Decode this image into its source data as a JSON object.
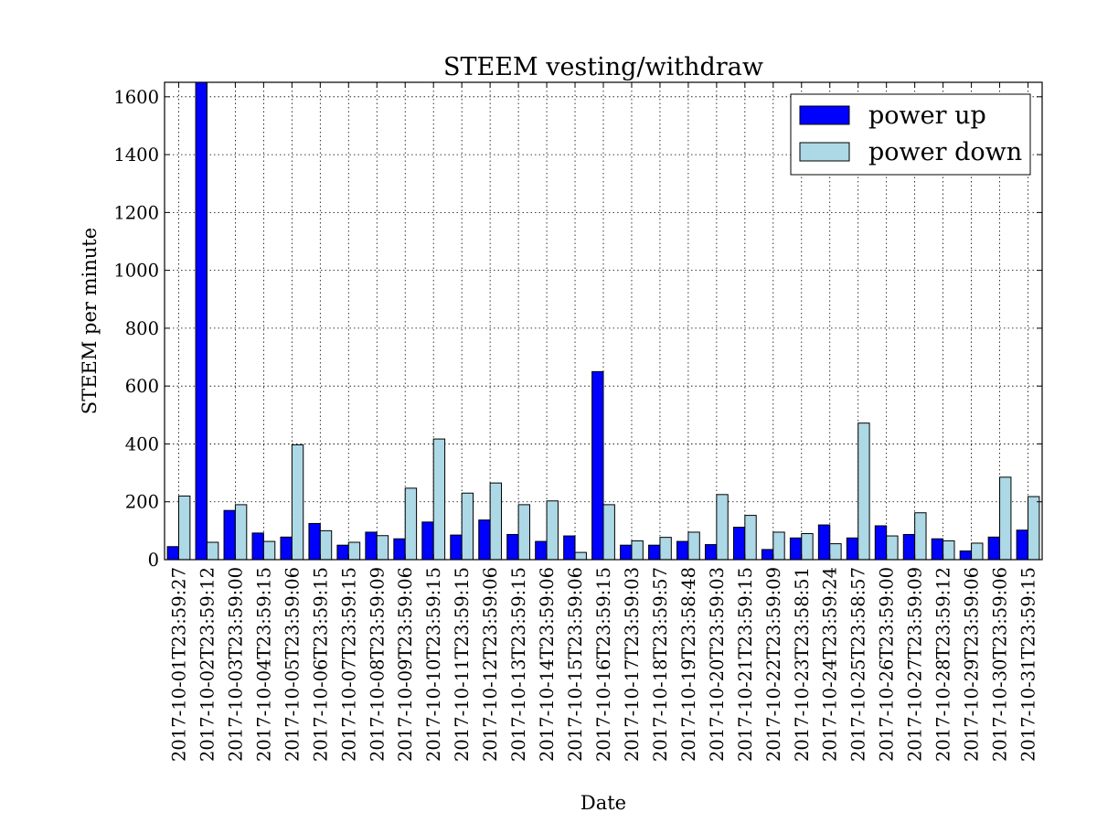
{
  "chart_data": {
    "type": "bar",
    "title": "STEEM vesting/withdraw",
    "xlabel": "Date",
    "ylabel": "STEEM per minute",
    "ylim": [
      0,
      1650
    ],
    "yticks": [
      0,
      200,
      400,
      600,
      800,
      1000,
      1200,
      1400,
      1600
    ],
    "grid": true,
    "legend_position": "top-right",
    "categories": [
      "2017-10-01T23:59:27",
      "2017-10-02T23:59:12",
      "2017-10-03T23:59:00",
      "2017-10-04T23:59:15",
      "2017-10-05T23:59:06",
      "2017-10-06T23:59:15",
      "2017-10-07T23:59:15",
      "2017-10-08T23:59:09",
      "2017-10-09T23:59:06",
      "2017-10-10T23:59:15",
      "2017-10-11T23:59:15",
      "2017-10-12T23:59:06",
      "2017-10-13T23:59:15",
      "2017-10-14T23:59:06",
      "2017-10-15T23:59:06",
      "2017-10-16T23:59:15",
      "2017-10-17T23:59:03",
      "2017-10-18T23:59:57",
      "2017-10-19T23:58:48",
      "2017-10-20T23:59:03",
      "2017-10-21T23:59:15",
      "2017-10-22T23:59:09",
      "2017-10-23T23:58:51",
      "2017-10-24T23:59:24",
      "2017-10-25T23:58:57",
      "2017-10-26T23:59:00",
      "2017-10-27T23:59:09",
      "2017-10-28T23:59:12",
      "2017-10-29T23:59:06",
      "2017-10-30T23:59:06",
      "2017-10-31T23:59:15"
    ],
    "series": [
      {
        "name": "power up",
        "color": "#0000ff",
        "values": [
          45,
          1650,
          170,
          92,
          78,
          125,
          50,
          95,
          72,
          130,
          85,
          137,
          87,
          63,
          82,
          650,
          50,
          50,
          63,
          52,
          112,
          35,
          75,
          120,
          75,
          117,
          87,
          72,
          30,
          78,
          102
        ]
      },
      {
        "name": "power down",
        "color": "#add8e6",
        "values": [
          220,
          60,
          190,
          63,
          397,
          100,
          60,
          83,
          247,
          417,
          230,
          265,
          190,
          203,
          25,
          190,
          65,
          77,
          95,
          225,
          153,
          95,
          90,
          55,
          472,
          82,
          162,
          65,
          57,
          285,
          218
        ]
      }
    ]
  }
}
